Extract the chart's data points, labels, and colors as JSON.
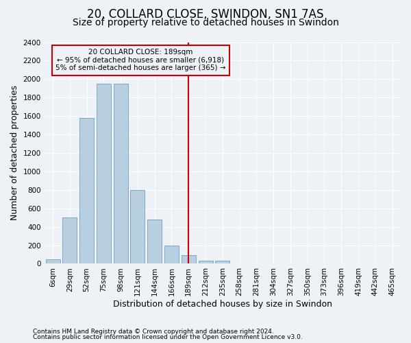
{
  "title": "20, COLLARD CLOSE, SWINDON, SN1 7AS",
  "subtitle": "Size of property relative to detached houses in Swindon",
  "xlabel": "Distribution of detached houses by size in Swindon",
  "ylabel": "Number of detached properties",
  "footer1": "Contains HM Land Registry data © Crown copyright and database right 2024.",
  "footer2": "Contains public sector information licensed under the Open Government Licence v3.0.",
  "categories": [
    "6sqm",
    "29sqm",
    "52sqm",
    "75sqm",
    "98sqm",
    "121sqm",
    "144sqm",
    "166sqm",
    "189sqm",
    "212sqm",
    "235sqm",
    "258sqm",
    "281sqm",
    "304sqm",
    "327sqm",
    "350sqm",
    "373sqm",
    "396sqm",
    "419sqm",
    "442sqm",
    "465sqm"
  ],
  "values": [
    50,
    500,
    1580,
    1950,
    1950,
    800,
    480,
    195,
    90,
    30,
    30,
    0,
    0,
    0,
    0,
    0,
    0,
    0,
    0,
    0,
    0
  ],
  "bar_color": "#b8cfe0",
  "bar_edge_color": "#6a9fc0",
  "vline_index": 8,
  "vline_color": "#cc0000",
  "annotation_line1": "20 COLLARD CLOSE: 189sqm",
  "annotation_line2": "← 95% of detached houses are smaller (6,918)",
  "annotation_line3": "5% of semi-detached houses are larger (365) →",
  "annotation_box_color": "#cc0000",
  "ylim": [
    0,
    2400
  ],
  "yticks": [
    0,
    200,
    400,
    600,
    800,
    1000,
    1200,
    1400,
    1600,
    1800,
    2000,
    2200,
    2400
  ],
  "background_color": "#eef2f7",
  "grid_color": "#ffffff",
  "title_fontsize": 12,
  "subtitle_fontsize": 10,
  "axis_label_fontsize": 9,
  "tick_fontsize": 7.5,
  "footer_fontsize": 6.5
}
